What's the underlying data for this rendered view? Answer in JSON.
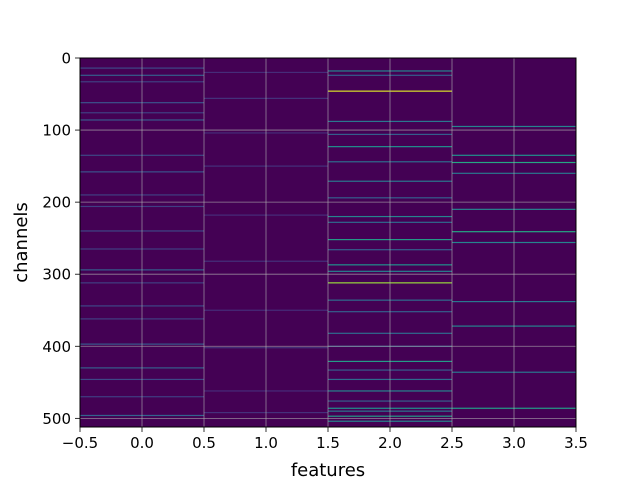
{
  "chart_data": {
    "type": "heatmap",
    "title": "",
    "xlabel": "features",
    "ylabel": "channels",
    "xlim": [
      -0.5,
      3.5
    ],
    "ylim": [
      512,
      0
    ],
    "x_ticks": [
      -0.5,
      0.0,
      0.5,
      1.0,
      1.5,
      2.0,
      2.5,
      3.0,
      3.5
    ],
    "x_tick_labels": [
      "−0.5",
      "0.0",
      "0.5",
      "1.0",
      "1.5",
      "2.0",
      "2.5",
      "3.0",
      "3.5"
    ],
    "y_ticks": [
      0,
      100,
      200,
      300,
      400,
      500
    ],
    "y_tick_labels": [
      "0",
      "100",
      "200",
      "300",
      "400",
      "500"
    ],
    "grid": true,
    "colormap": "viridis",
    "background_color": "#440154",
    "columns": [
      {
        "feature": 0,
        "bright_rows": [
          {
            "channel": 14,
            "value": 0.22
          },
          {
            "channel": 24,
            "value": 0.3
          },
          {
            "channel": 33,
            "value": 0.2
          },
          {
            "channel": 62,
            "value": 0.25
          },
          {
            "channel": 76,
            "value": 0.2
          },
          {
            "channel": 86,
            "value": 0.28
          },
          {
            "channel": 135,
            "value": 0.22
          },
          {
            "channel": 158,
            "value": 0.25
          },
          {
            "channel": 190,
            "value": 0.2
          },
          {
            "channel": 206,
            "value": 0.2
          },
          {
            "channel": 240,
            "value": 0.22
          },
          {
            "channel": 265,
            "value": 0.2
          },
          {
            "channel": 294,
            "value": 0.3
          },
          {
            "channel": 312,
            "value": 0.2
          },
          {
            "channel": 344,
            "value": 0.22
          },
          {
            "channel": 362,
            "value": 0.2
          },
          {
            "channel": 397,
            "value": 0.28
          },
          {
            "channel": 430,
            "value": 0.3
          },
          {
            "channel": 446,
            "value": 0.22
          },
          {
            "channel": 470,
            "value": 0.2
          },
          {
            "channel": 496,
            "value": 0.32
          }
        ]
      },
      {
        "feature": 1,
        "bright_rows": [
          {
            "channel": 20,
            "value": 0.15
          },
          {
            "channel": 56,
            "value": 0.17
          },
          {
            "channel": 104,
            "value": 0.15
          },
          {
            "channel": 150,
            "value": 0.16
          },
          {
            "channel": 218,
            "value": 0.15
          },
          {
            "channel": 282,
            "value": 0.16
          },
          {
            "channel": 350,
            "value": 0.15
          },
          {
            "channel": 402,
            "value": 0.17
          },
          {
            "channel": 462,
            "value": 0.15
          },
          {
            "channel": 492,
            "value": 0.16
          }
        ]
      },
      {
        "feature": 2,
        "bright_rows": [
          {
            "channel": 18,
            "value": 0.45
          },
          {
            "channel": 24,
            "value": 0.3
          },
          {
            "channel": 46,
            "value": 0.95
          },
          {
            "channel": 88,
            "value": 0.4
          },
          {
            "channel": 106,
            "value": 0.3
          },
          {
            "channel": 123,
            "value": 0.5
          },
          {
            "channel": 144,
            "value": 0.35
          },
          {
            "channel": 171,
            "value": 0.4
          },
          {
            "channel": 194,
            "value": 0.3
          },
          {
            "channel": 220,
            "value": 0.45
          },
          {
            "channel": 228,
            "value": 0.35
          },
          {
            "channel": 252,
            "value": 0.55
          },
          {
            "channel": 266,
            "value": 0.3
          },
          {
            "channel": 287,
            "value": 0.5
          },
          {
            "channel": 296,
            "value": 0.45
          },
          {
            "channel": 312,
            "value": 0.85
          },
          {
            "channel": 336,
            "value": 0.35
          },
          {
            "channel": 352,
            "value": 0.3
          },
          {
            "channel": 382,
            "value": 0.35
          },
          {
            "channel": 400,
            "value": 0.3
          },
          {
            "channel": 421,
            "value": 0.55
          },
          {
            "channel": 433,
            "value": 0.3
          },
          {
            "channel": 446,
            "value": 0.35
          },
          {
            "channel": 462,
            "value": 0.45
          },
          {
            "channel": 476,
            "value": 0.3
          },
          {
            "channel": 486,
            "value": 0.5
          },
          {
            "channel": 490,
            "value": 0.4
          },
          {
            "channel": 497,
            "value": 0.55
          },
          {
            "channel": 504,
            "value": 0.45
          }
        ]
      },
      {
        "feature": 3,
        "bright_rows": [
          {
            "channel": 95,
            "value": 0.45
          },
          {
            "channel": 135,
            "value": 0.5
          },
          {
            "channel": 145,
            "value": 0.6
          },
          {
            "channel": 160,
            "value": 0.4
          },
          {
            "channel": 210,
            "value": 0.45
          },
          {
            "channel": 241,
            "value": 0.6
          },
          {
            "channel": 256,
            "value": 0.45
          },
          {
            "channel": 338,
            "value": 0.4
          },
          {
            "channel": 372,
            "value": 0.45
          },
          {
            "channel": 436,
            "value": 0.4
          },
          {
            "channel": 486,
            "value": 0.55
          }
        ]
      }
    ]
  }
}
